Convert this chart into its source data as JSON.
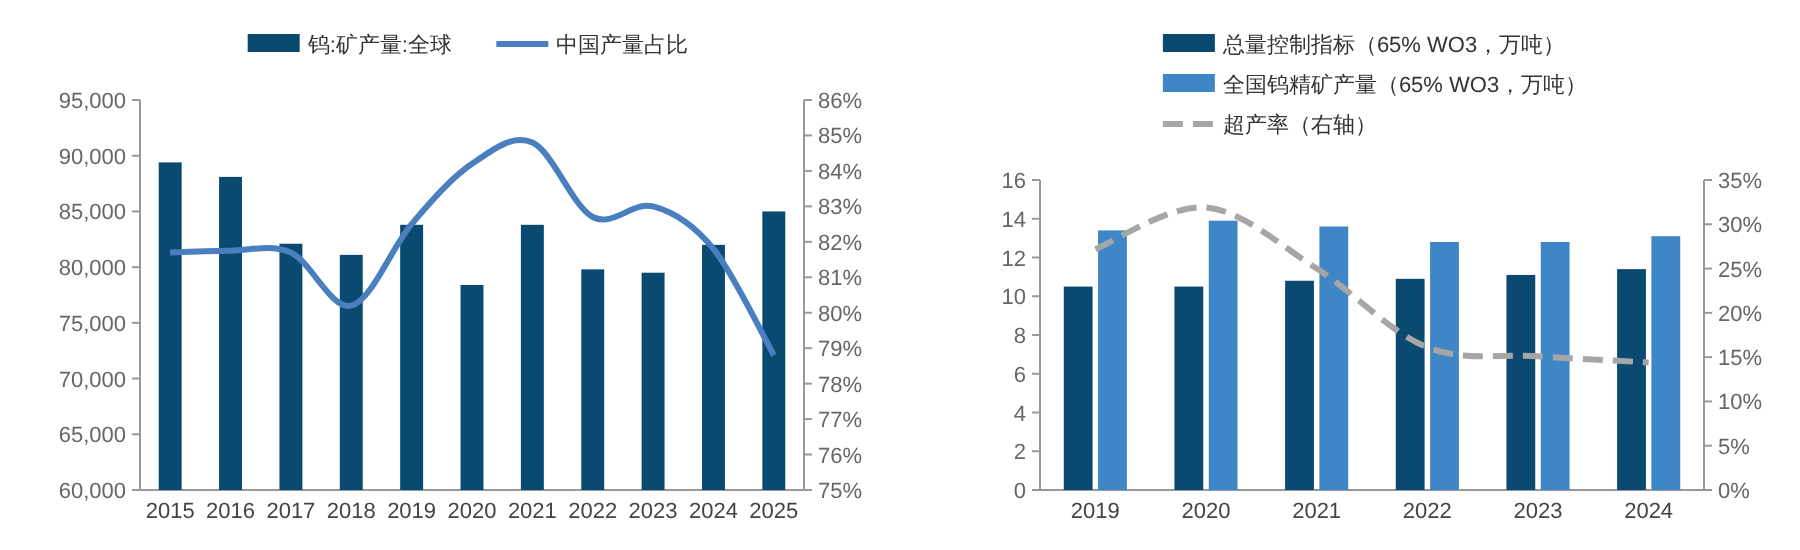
{
  "chart_data": [
    {
      "type": "bar",
      "categories": [
        "2015",
        "2016",
        "2017",
        "2018",
        "2019",
        "2020",
        "2021",
        "2022",
        "2023",
        "2024",
        "2025"
      ],
      "series": [
        {
          "name": "钨:矿产量:全球",
          "color": "#0b4a70",
          "values": [
            89400,
            88100,
            82100,
            81100,
            83800,
            78400,
            83800,
            79800,
            79500,
            82000,
            85000
          ]
        },
        {
          "name": "中国产量占比",
          "type": "line",
          "axis": "y2",
          "color": "#4a7fbf",
          "values": [
            81.7,
            81.75,
            81.7,
            80.2,
            82.5,
            84.2,
            84.8,
            82.7,
            83.0,
            81.8,
            78.8
          ]
        }
      ],
      "ylim": [
        60000,
        95000
      ],
      "yticks": [
        {
          "value": 60000,
          "label": "60,000"
        },
        {
          "value": 65000,
          "label": "65,000"
        },
        {
          "value": 70000,
          "label": "70,000"
        },
        {
          "value": 75000,
          "label": "75,000"
        },
        {
          "value": 80000,
          "label": "80,000"
        },
        {
          "value": 85000,
          "label": "85,000"
        },
        {
          "value": 90000,
          "label": "90,000"
        },
        {
          "value": 95000,
          "label": "95,000"
        }
      ],
      "y2lim": [
        75,
        86
      ],
      "y2ticks": [
        {
          "value": 75,
          "label": "75%"
        },
        {
          "value": 76,
          "label": "76%"
        },
        {
          "value": 77,
          "label": "77%"
        },
        {
          "value": 78,
          "label": "78%"
        },
        {
          "value": 79,
          "label": "79%"
        },
        {
          "value": 80,
          "label": "80%"
        },
        {
          "value": 81,
          "label": "81%"
        },
        {
          "value": 82,
          "label": "82%"
        },
        {
          "value": 83,
          "label": "83%"
        },
        {
          "value": 84,
          "label": "84%"
        },
        {
          "value": 85,
          "label": "85%"
        },
        {
          "value": 86,
          "label": "86%"
        }
      ],
      "legend": "top",
      "grid": false
    },
    {
      "type": "bar",
      "categories": [
        "2019",
        "2020",
        "2021",
        "2022",
        "2023",
        "2024"
      ],
      "series": [
        {
          "name": "总量控制指标（65% WO3，万吨）",
          "color": "#0b4a70",
          "values": [
            10.5,
            10.5,
            10.8,
            10.9,
            11.1,
            11.4
          ]
        },
        {
          "name": "全国钨精矿产量（65% WO3，万吨）",
          "color": "#3f86c6",
          "values": [
            13.4,
            13.9,
            13.6,
            12.8,
            12.8,
            13.1
          ]
        },
        {
          "name": "超产率（右轴）",
          "type": "line",
          "axis": "y2",
          "color": "#a6a6a6",
          "line_style": "dashed",
          "values": [
            27.2,
            31.9,
            25.0,
            16.1,
            15.1,
            14.4
          ]
        }
      ],
      "ylim": [
        0,
        16
      ],
      "yticks": [
        0,
        2,
        4,
        6,
        8,
        10,
        12,
        14,
        16
      ],
      "y2lim": [
        0,
        35
      ],
      "y2ticks": [
        {
          "value": 0,
          "label": "0%"
        },
        {
          "value": 5,
          "label": "5%"
        },
        {
          "value": 10,
          "label": "10%"
        },
        {
          "value": 15,
          "label": "15%"
        },
        {
          "value": 20,
          "label": "20%"
        },
        {
          "value": 25,
          "label": "25%"
        },
        {
          "value": 30,
          "label": "30%"
        },
        {
          "value": 35,
          "label": "35%"
        }
      ],
      "legend": "top",
      "grid": false
    }
  ]
}
